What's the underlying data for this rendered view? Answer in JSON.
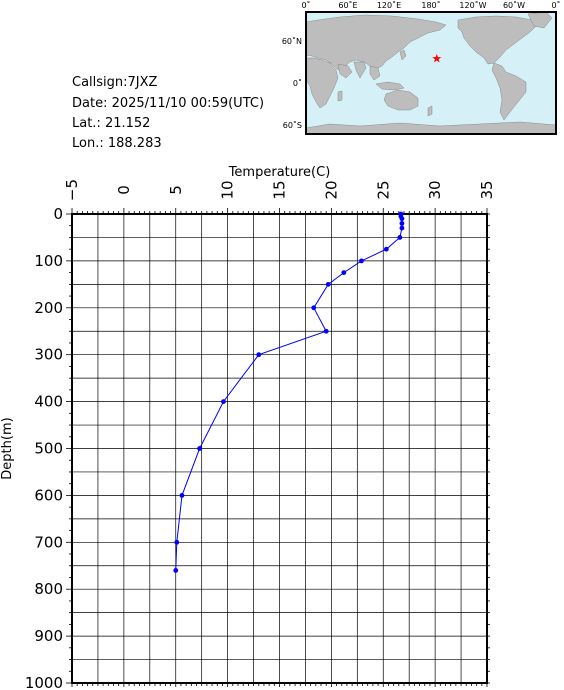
{
  "station": {
    "callsign": "Callsign:7JXZ",
    "date": "Date:  2025/11/10 00:59(UTC)",
    "lat": "Lat.:   21.152",
    "lon": "Lon.:  188.283"
  },
  "map": {
    "lon_labels": [
      "0˚",
      "60˚E",
      "120˚E",
      "180˚",
      "120˚W",
      "60˚W",
      "0˚"
    ],
    "lat_labels": [
      "60˚N",
      "0˚",
      "60˚S"
    ],
    "ocean_color": "#d6f0f8",
    "land_color": "#bdbdbd",
    "marker_color": "#ff0000",
    "marker": {
      "lat": 21.152,
      "lon": 188.283
    }
  },
  "chart_data": {
    "type": "line",
    "title": "",
    "xlabel": "Temperature(C)",
    "ylabel": "Depth(m)",
    "xlim": [
      -5,
      35
    ],
    "ylim": [
      0,
      1000
    ],
    "y_inverted": true,
    "x_ticks": [
      -5,
      0,
      5,
      10,
      15,
      20,
      25,
      30,
      35
    ],
    "y_ticks": [
      0,
      100,
      200,
      300,
      400,
      500,
      600,
      700,
      800,
      900,
      1000
    ],
    "grid": true,
    "line_color": "#0000ff",
    "series": [
      {
        "x": [
          26.7,
          26.7,
          26.8,
          26.8,
          26.8,
          26.6,
          25.3,
          22.9,
          21.2,
          19.7,
          18.3,
          19.5,
          13.0,
          9.6,
          7.3,
          5.6,
          5.1,
          5.0
        ],
        "y": [
          0,
          5,
          10,
          20,
          30,
          50,
          75,
          100,
          125,
          150,
          200,
          250,
          300,
          400,
          500,
          600,
          700,
          760
        ]
      }
    ]
  }
}
